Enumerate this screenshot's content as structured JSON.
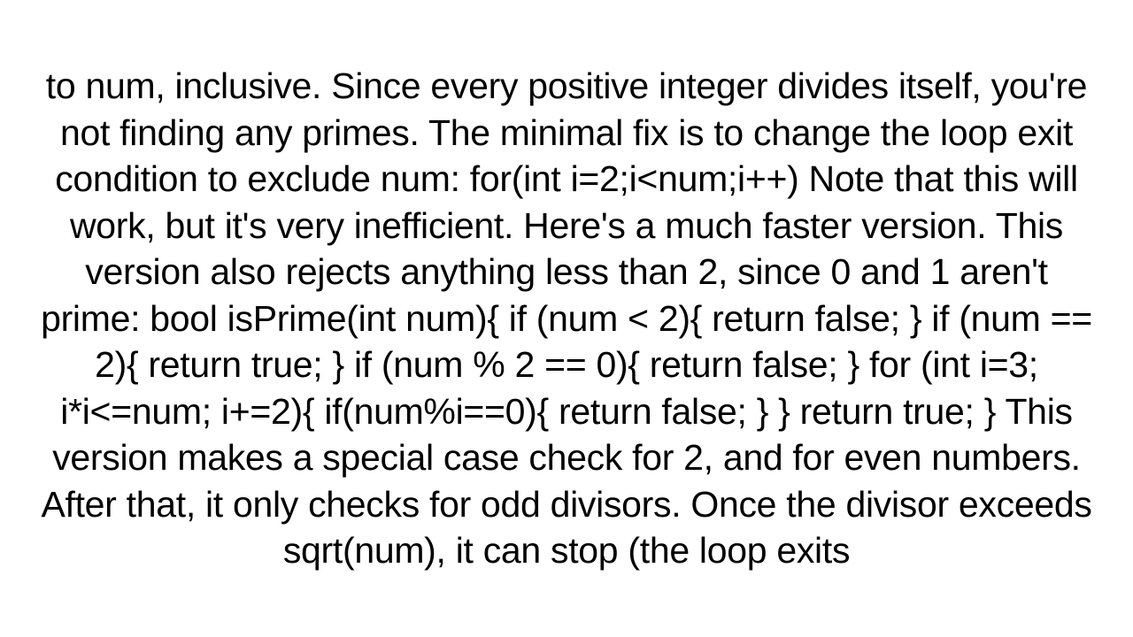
{
  "document": {
    "text": "to num, inclusive.  Since every positive integer divides itself, you're not finding any primes.  The minimal fix is to change the loop exit condition to exclude num:  for(int i=2;i<num;i++)  Note that this will work, but it's very inefficient.  Here's a much faster version.  This version also rejects anything less than 2, since 0 and 1 aren't prime: bool isPrime(int num){     if (num < 2){         return false;     }     if (num == 2){         return true;     }     if (num % 2 == 0){         return false;     }     for (int i=3; i*i<=num; i+=2){         if(num%i==0){             return false;         }     }     return true; }  This version makes a special case check for 2, and for even numbers.  After that, it only checks for odd divisors.  Once the divisor exceeds sqrt(num), it can stop (the loop exits",
    "background_color": "#ffffff",
    "text_color": "#000000",
    "font_family": "Arial, Helvetica, sans-serif",
    "font_size": 41,
    "text_align": "center",
    "line_height": 1.28
  }
}
